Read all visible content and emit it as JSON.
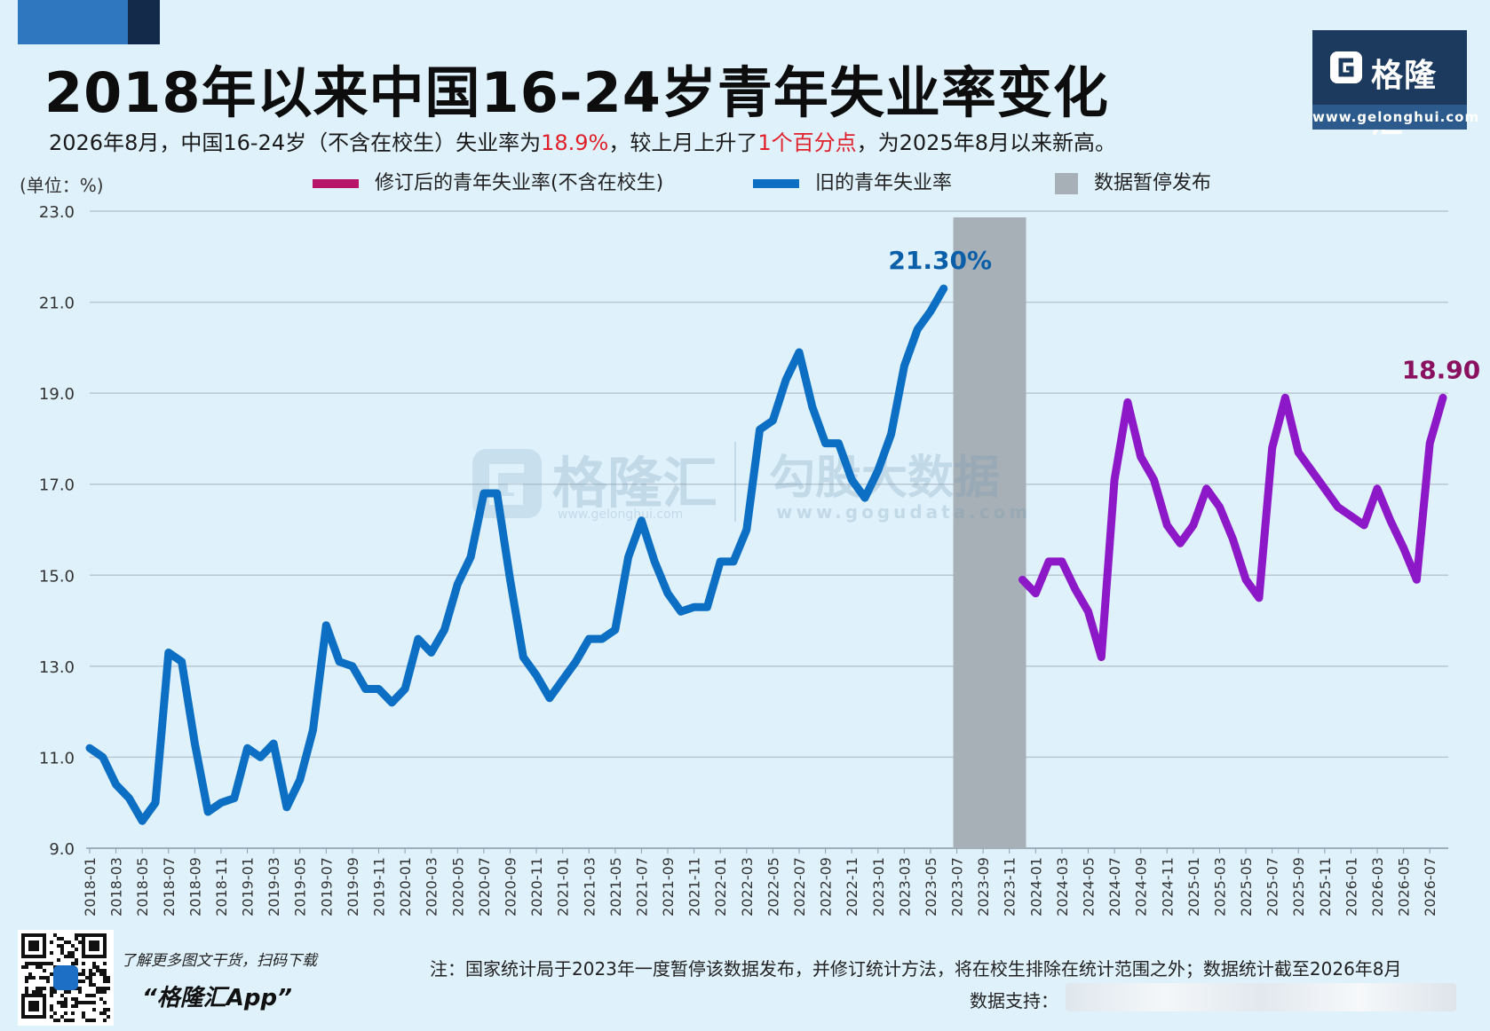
{
  "title": "2018年以来中国16-24岁青年失业率变化",
  "subtitle": {
    "part1": "2026年8月，中国16-24岁（不含在校生）失业率为",
    "value": "18.9%",
    "part2": "，较上月上升了",
    "change": "1个百分点",
    "part3": "，为2025年8月以来新高。"
  },
  "logo": {
    "name": "格隆汇",
    "url": "www.gelonghui.com"
  },
  "unit": "(单位：%)",
  "legend": {
    "revised": "修订后的青年失业率(不含在校生)",
    "old": "旧的青年失业率",
    "paused": "数据暂停发布"
  },
  "watermark": {
    "brand": "格隆汇",
    "brand_url": "www.gelonghui.com",
    "brand2": "勾股大数据",
    "brand2_url": "www.gogudata.com"
  },
  "footer": {
    "qr_text": "了解更多图文干货，扫码下载",
    "app": "“格隆汇App”",
    "note": "注：国家统计局于2023年一度暂停该数据发布，并修订统计方法，将在校生排除在统计范围之外；数据统计截至2026年8月",
    "support": "数据支持："
  },
  "colors": {
    "old": "#0c6fc3",
    "revised": "#8c18c8",
    "paused": "#a6b0b6",
    "grid": "#b8c7d2",
    "revised_legend": "#b8156a"
  },
  "chart_data": {
    "type": "line",
    "ylim": [
      9,
      23
    ],
    "yticks": [
      "9.0",
      "11.0",
      "13.0",
      "15.0",
      "17.0",
      "19.0",
      "21.0",
      "23.0"
    ],
    "x_start": "2018-01",
    "x_end": "2026-08",
    "xticks": [
      "2018-01",
      "2018-03",
      "2018-05",
      "2018-07",
      "2018-09",
      "2018-11",
      "2019-01",
      "2019-03",
      "2019-05",
      "2019-07",
      "2019-09",
      "2019-11",
      "2020-01",
      "2020-03",
      "2020-05",
      "2020-07",
      "2020-09",
      "2020-11",
      "2021-01",
      "2021-03",
      "2021-05",
      "2021-07",
      "2021-09",
      "2021-11",
      "2022-01",
      "2022-03",
      "2022-05",
      "2022-07",
      "2022-09",
      "2022-11",
      "2023-01",
      "2023-03",
      "2023-05",
      "2023-07",
      "2023-09",
      "2023-11",
      "2024-01",
      "2024-03",
      "2024-05",
      "2024-07",
      "2024-09",
      "2024-11",
      "2025-01",
      "2025-03",
      "2025-05",
      "2025-07",
      "2025-09",
      "2025-11",
      "2026-01",
      "2026-03",
      "2026-05",
      "2026-07"
    ],
    "paused": {
      "from": "2023-07",
      "to": "2023-12"
    },
    "series": [
      {
        "name": "旧的青年失业率",
        "start": "2018-01",
        "values": [
          11.2,
          11.0,
          10.4,
          10.1,
          9.6,
          10.0,
          13.3,
          13.1,
          11.3,
          9.8,
          10.0,
          10.1,
          11.2,
          11.0,
          11.3,
          9.9,
          10.5,
          11.6,
          13.9,
          13.1,
          13.0,
          12.5,
          12.5,
          12.2,
          12.5,
          13.6,
          13.3,
          13.8,
          14.8,
          15.4,
          16.8,
          16.8,
          14.9,
          13.2,
          12.8,
          12.3,
          12.7,
          13.1,
          13.6,
          13.6,
          13.8,
          15.4,
          16.2,
          15.3,
          14.6,
          14.2,
          14.3,
          14.3,
          15.3,
          15.3,
          16.0,
          18.2,
          18.4,
          19.3,
          19.9,
          18.7,
          17.9,
          17.9,
          17.1,
          16.7,
          17.3,
          18.1,
          19.6,
          20.4,
          20.8,
          21.3
        ],
        "end_label": "21.30%"
      },
      {
        "name": "修订后的青年失业率(不含在校生)",
        "start": "2023-12",
        "values": [
          14.9,
          14.6,
          15.3,
          15.3,
          14.7,
          14.2,
          13.2,
          17.1,
          18.8,
          17.6,
          17.1,
          16.1,
          15.7,
          16.1,
          16.9,
          16.5,
          15.8,
          14.9,
          14.5,
          17.8,
          18.9,
          17.7,
          17.3,
          16.9,
          16.5,
          16.3,
          16.1,
          16.9,
          16.2,
          15.6,
          14.9,
          17.9,
          18.9
        ],
        "end_label": "18.90"
      }
    ]
  }
}
